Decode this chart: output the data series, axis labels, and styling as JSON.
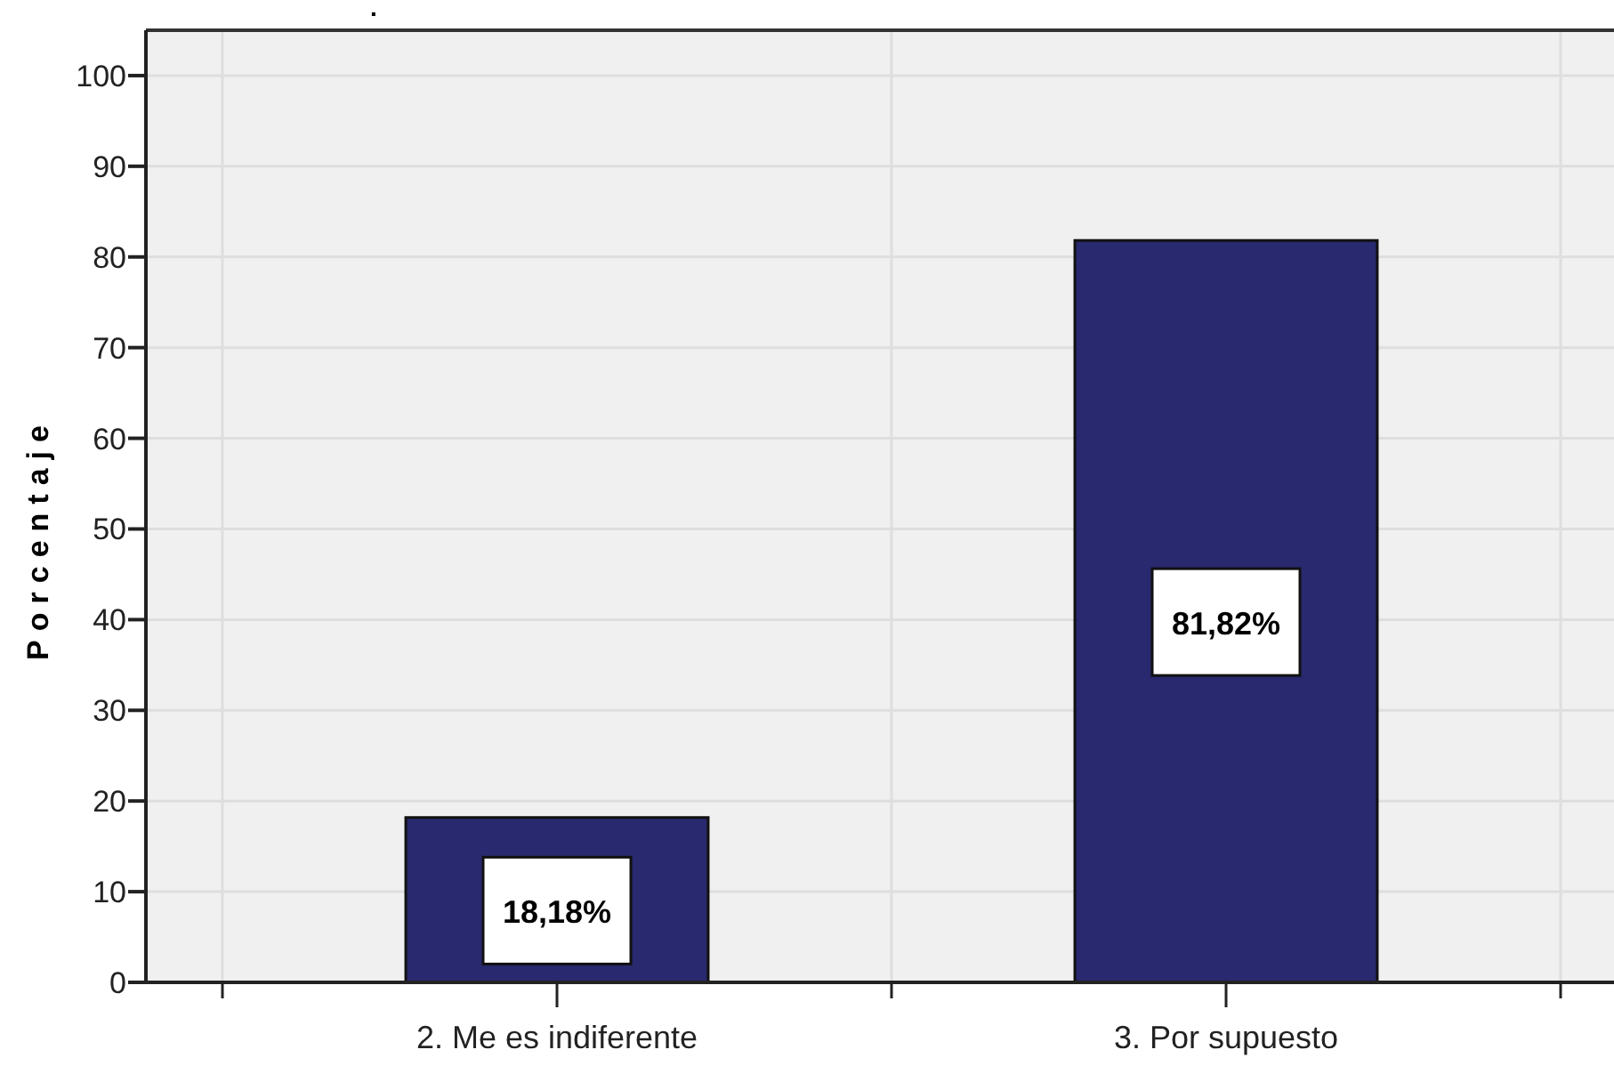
{
  "chart_data": {
    "type": "bar",
    "title": ".",
    "ylabel": "Porcentaje",
    "categories": [
      "2. Me es indiferente",
      "3. Por supuesto"
    ],
    "values": [
      18.18,
      81.82
    ],
    "value_labels": [
      "18,18%",
      "81,82%"
    ],
    "color": "#29296f",
    "ylim": [
      0,
      105
    ],
    "yticks": [
      0,
      10,
      20,
      30,
      40,
      50,
      60,
      70,
      80,
      90,
      100
    ],
    "grid": true
  }
}
